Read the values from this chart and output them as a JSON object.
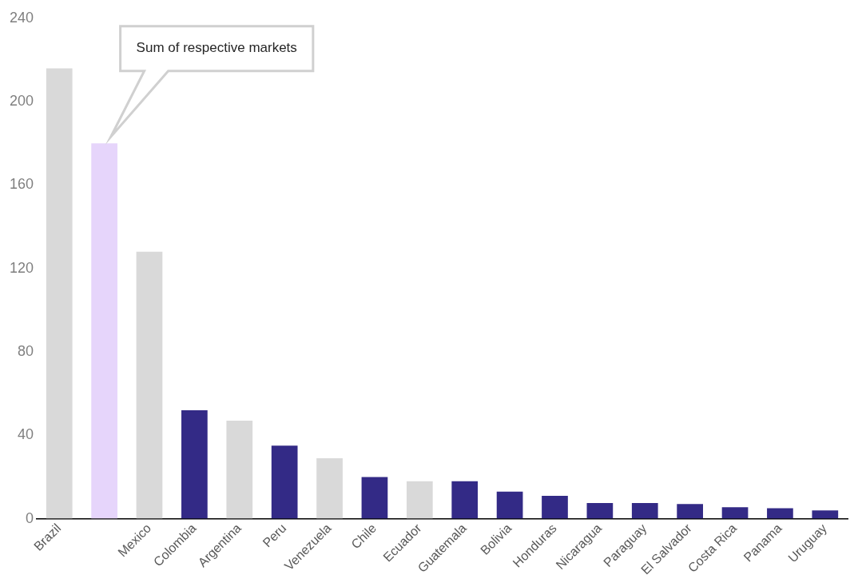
{
  "chart_data": {
    "type": "bar",
    "categories": [
      "Brazil",
      null,
      "Mexico",
      "Colombia",
      "Argentina",
      "Peru",
      "Venezuela",
      "Chile",
      "Ecuador",
      "Guatemala",
      "Bolivia",
      "Honduras",
      "Nicaragua",
      "Paraguay",
      "El Salvador",
      "Costa Rica",
      "Panama",
      "Uruguay"
    ],
    "values": [
      216,
      180,
      128,
      52,
      47,
      35,
      29,
      20,
      18,
      18,
      13,
      11,
      7.5,
      7.5,
      7,
      5.5,
      5,
      4
    ],
    "colors": [
      "#d9d9d9",
      "#e6d5fb",
      "#d9d9d9",
      "#332a86",
      "#d9d9d9",
      "#332a86",
      "#d9d9d9",
      "#332a86",
      "#d9d9d9",
      "#332a86",
      "#332a86",
      "#332a86",
      "#332a86",
      "#332a86",
      "#332a86",
      "#332a86",
      "#332a86",
      "#332a86"
    ],
    "ylim": [
      0,
      240
    ],
    "yticks": [
      0,
      40,
      80,
      120,
      160,
      200,
      240
    ],
    "grid": false,
    "legend": false,
    "annotations": [
      "Sum of respective markets"
    ]
  }
}
